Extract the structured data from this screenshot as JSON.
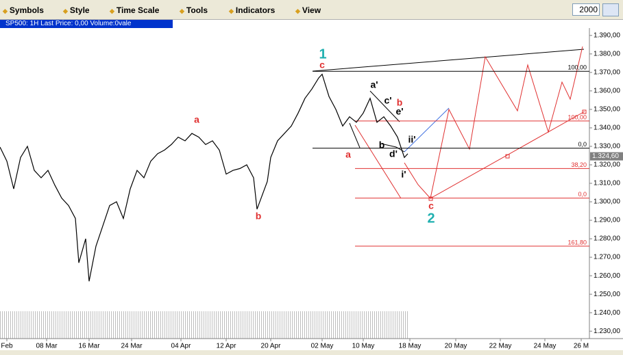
{
  "toolbar": {
    "items": [
      "Symbols",
      "Style",
      "Time Scale",
      "Tools",
      "Indicators",
      "View"
    ],
    "year": "2000"
  },
  "header": {
    "title": "SP500: 1H Last Price: 0,00 Volume:0vale"
  },
  "chart_data": {
    "type": "line",
    "color": "#000000",
    "last_price": {
      "value": 1324.6,
      "label": "1.324,60"
    },
    "xlim": [
      0,
      860
    ],
    "ylim": [
      1226,
      1394
    ],
    "xticks": [
      {
        "value": 10,
        "label": "Feb"
      },
      {
        "value": 68,
        "label": "08 Mar"
      },
      {
        "value": 130,
        "label": "16 Mar"
      },
      {
        "value": 192,
        "label": "24 Mar"
      },
      {
        "value": 264,
        "label": "04 Apr"
      },
      {
        "value": 330,
        "label": "12 Apr"
      },
      {
        "value": 395,
        "label": "20 Apr"
      },
      {
        "value": 470,
        "label": "02 May"
      },
      {
        "value": 530,
        "label": "10 May"
      },
      {
        "value": 598,
        "label": "18 May"
      },
      {
        "value": 665,
        "label": "20 May"
      },
      {
        "value": 730,
        "label": "22 May"
      },
      {
        "value": 795,
        "label": "24 May"
      },
      {
        "value": 848,
        "label": "26 M"
      }
    ],
    "yticks": [
      {
        "value": 1230,
        "label": "1.230,00"
      },
      {
        "value": 1240,
        "label": "1.240,00"
      },
      {
        "value": 1250,
        "label": "1.250,00"
      },
      {
        "value": 1260,
        "label": "1.260,00"
      },
      {
        "value": 1270,
        "label": "1.270,00"
      },
      {
        "value": 1280,
        "label": "1.280,00"
      },
      {
        "value": 1290,
        "label": "1.290,00"
      },
      {
        "value": 1300,
        "label": "1.300,00"
      },
      {
        "value": 1310,
        "label": "1.310,00"
      },
      {
        "value": 1320,
        "label": "1.320,00"
      },
      {
        "value": 1330,
        "label": "1.330,00"
      },
      {
        "value": 1340,
        "label": "1.340,00"
      },
      {
        "value": 1350,
        "label": "1.350,00"
      },
      {
        "value": 1360,
        "label": "1.360,00"
      },
      {
        "value": 1370,
        "label": "1.370,00"
      },
      {
        "value": 1380,
        "label": "1.380,00"
      },
      {
        "value": 1390,
        "label": "1.390,00"
      }
    ],
    "x": [
      0,
      10,
      20,
      30,
      40,
      50,
      60,
      70,
      80,
      90,
      100,
      110,
      115,
      125,
      130,
      140,
      150,
      160,
      170,
      180,
      190,
      200,
      210,
      220,
      230,
      240,
      250,
      260,
      270,
      280,
      290,
      300,
      310,
      320,
      330,
      340,
      350,
      360,
      370,
      375,
      385,
      390,
      395,
      405,
      415,
      425,
      435,
      445,
      455,
      465,
      470,
      480,
      490,
      500,
      510,
      520,
      530,
      540,
      550,
      560,
      570,
      580,
      590,
      595
    ],
    "values": [
      1329.6,
      1322,
      1307,
      1324,
      1330,
      1317,
      1313,
      1317,
      1309,
      1302,
      1298,
      1291,
      1267,
      1280,
      1257,
      1276,
      1287,
      1298,
      1300,
      1291,
      1307,
      1317,
      1313,
      1322,
      1326,
      1328,
      1331,
      1335,
      1333,
      1337,
      1335,
      1331,
      1333,
      1328,
      1315,
      1317,
      1318,
      1320,
      1313,
      1296,
      1306,
      1311,
      1324,
      1333,
      1337,
      1341,
      1348,
      1356,
      1361,
      1367,
      1369,
      1357,
      1350,
      1341,
      1346,
      1343,
      1348,
      1356,
      1343,
      1346,
      1341,
      1335,
      1324,
      1326
    ],
    "fib_levels": [
      {
        "label": "100,00",
        "price": 1370.6,
        "color": "#000000"
      },
      {
        "label": "100,00",
        "price": 1343.7,
        "color": "#e03030"
      },
      {
        "label": "0,0",
        "price": 1329,
        "color": "#000000"
      },
      {
        "label": "38,20",
        "price": 1318,
        "color": "#e03030"
      },
      {
        "label": "0,0",
        "price": 1302,
        "color": "#e03030"
      },
      {
        "label": "161,80",
        "price": 1276,
        "color": "#e03030"
      }
    ],
    "wave_labels": [
      "1",
      "c",
      "a",
      "b",
      "a",
      "b",
      "a'",
      "c'",
      "e'",
      "b",
      "d'",
      "ii'",
      "i'",
      "c",
      "2"
    ]
  }
}
